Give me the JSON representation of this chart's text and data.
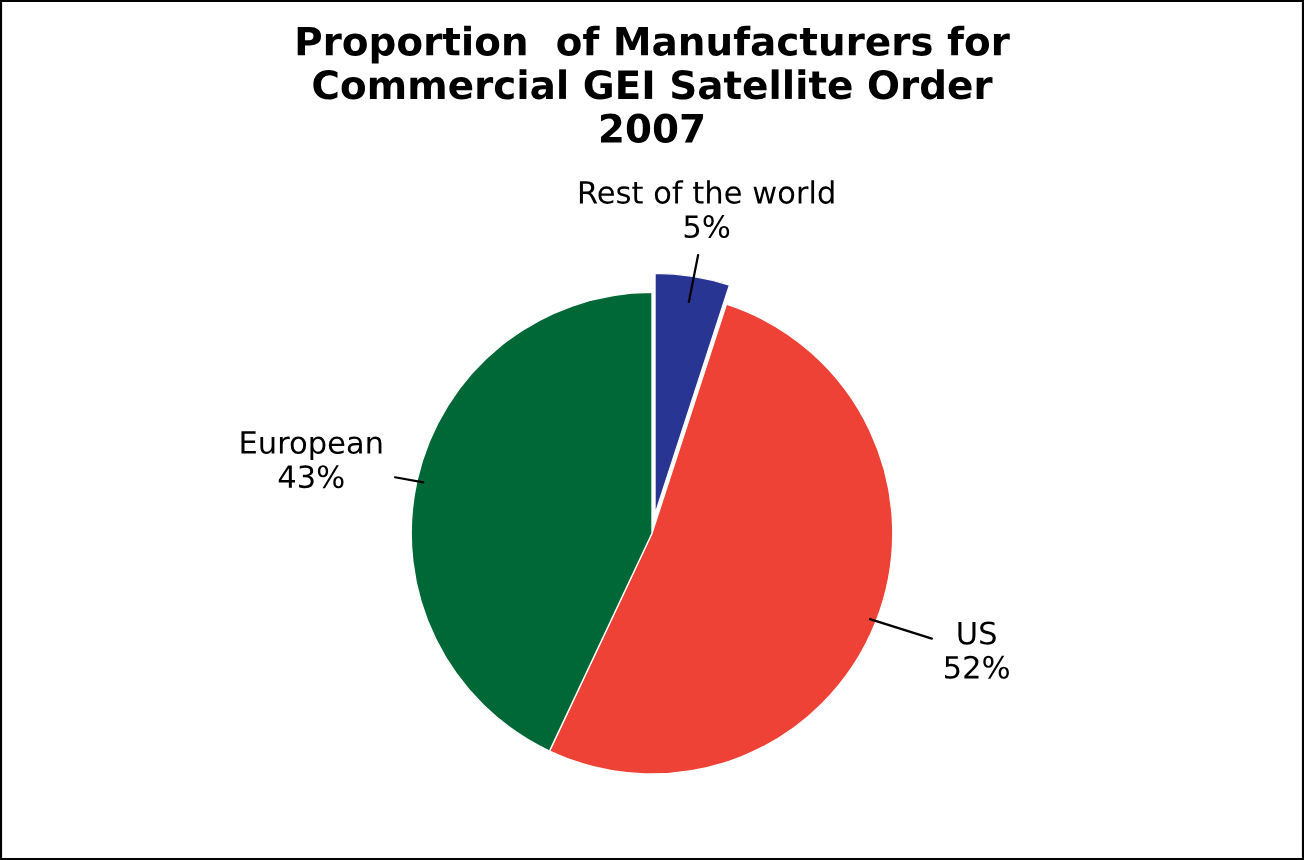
{
  "chart_data": {
    "type": "pie",
    "title": "Proportion  of Manufacturers for\nCommercial GEI Satellite Order\n2007",
    "categories": [
      "Rest of the world",
      "US",
      "European"
    ],
    "values": [
      5,
      52,
      43
    ],
    "value_labels": [
      "5%",
      "52%",
      "43%"
    ],
    "colors": [
      "#283593",
      "#ee4236",
      "#006837"
    ],
    "legend": false
  }
}
